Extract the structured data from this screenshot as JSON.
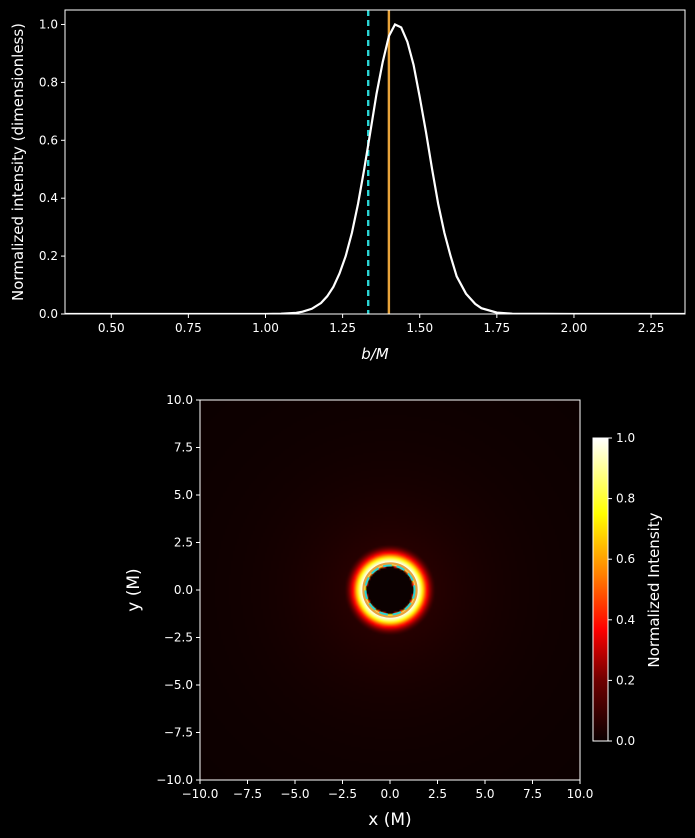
{
  "chart_data": [
    {
      "type": "line",
      "xlabel": "b/M",
      "ylabel": "Normalized intensity (dimensionless)",
      "xlim": [
        0.35,
        2.36
      ],
      "ylim": [
        0,
        1.05
      ],
      "xticks": [
        0.5,
        0.75,
        1.0,
        1.25,
        1.5,
        1.75,
        2.0,
        2.25
      ],
      "xtick_labels": [
        "0.50",
        "0.75",
        "1.00",
        "1.25",
        "1.50",
        "1.75",
        "2.00",
        "2.25"
      ],
      "yticks": [
        0.0,
        0.2,
        0.4,
        0.6,
        0.8,
        1.0
      ],
      "ytick_labels": [
        "0.0",
        "0.2",
        "0.4",
        "0.6",
        "0.8",
        "1.0"
      ],
      "series": [
        {
          "color": "#ffffff",
          "x": [
            0.35,
            0.5,
            0.7,
            0.9,
            1.0,
            1.05,
            1.1,
            1.12,
            1.15,
            1.18,
            1.2,
            1.22,
            1.24,
            1.26,
            1.28,
            1.3,
            1.32,
            1.34,
            1.36,
            1.38,
            1.4,
            1.42,
            1.44,
            1.46,
            1.48,
            1.5,
            1.52,
            1.54,
            1.56,
            1.58,
            1.6,
            1.62,
            1.65,
            1.68,
            1.7,
            1.75,
            1.8,
            2.0,
            2.36
          ],
          "y": [
            0,
            0,
            0,
            0,
            0,
            0.001,
            0.004,
            0.008,
            0.018,
            0.038,
            0.061,
            0.094,
            0.14,
            0.2,
            0.28,
            0.38,
            0.5,
            0.63,
            0.76,
            0.87,
            0.96,
            1.0,
            0.99,
            0.94,
            0.86,
            0.75,
            0.63,
            0.5,
            0.38,
            0.28,
            0.2,
            0.13,
            0.07,
            0.035,
            0.02,
            0.005,
            0.001,
            0,
            0
          ]
        }
      ],
      "vlines": [
        {
          "x": 1.333,
          "color": "#2ad4d4",
          "style": "dashed"
        },
        {
          "x": 1.4,
          "color": "#e8a33a",
          "style": "solid"
        }
      ],
      "grid": false
    },
    {
      "type": "heatmap",
      "xlabel": "x (M)",
      "ylabel": "y (M)",
      "xlim": [
        -10,
        10
      ],
      "ylim": [
        -10,
        10
      ],
      "ticks": [
        -10,
        -7.5,
        -5,
        -2.5,
        0,
        2.5,
        5,
        7.5,
        10
      ],
      "xtick_labels": [
        "−10.0",
        "−7.5",
        "−5.0",
        "−2.5",
        "0.0",
        "2.5",
        "5.0",
        "7.5",
        "10.0"
      ],
      "ytick_labels": [
        "−10.0",
        "−7.5",
        "−5.0",
        "−2.5",
        "0.0",
        "2.5",
        "5.0",
        "7.5",
        "10.0"
      ],
      "colormap": "hot",
      "colorbar_label": "Normalized Intensity",
      "colorbar_ticks": [
        "0.0",
        "0.2",
        "0.4",
        "0.6",
        "0.8",
        "1.0"
      ],
      "ring_radius": 1.4,
      "shadow_radius": 1.333,
      "circles": [
        {
          "r": 1.333,
          "color": "#2ad4d4",
          "style": "dashed"
        },
        {
          "r": 1.4,
          "color": "#e8a33a",
          "style": "solid"
        }
      ]
    }
  ]
}
